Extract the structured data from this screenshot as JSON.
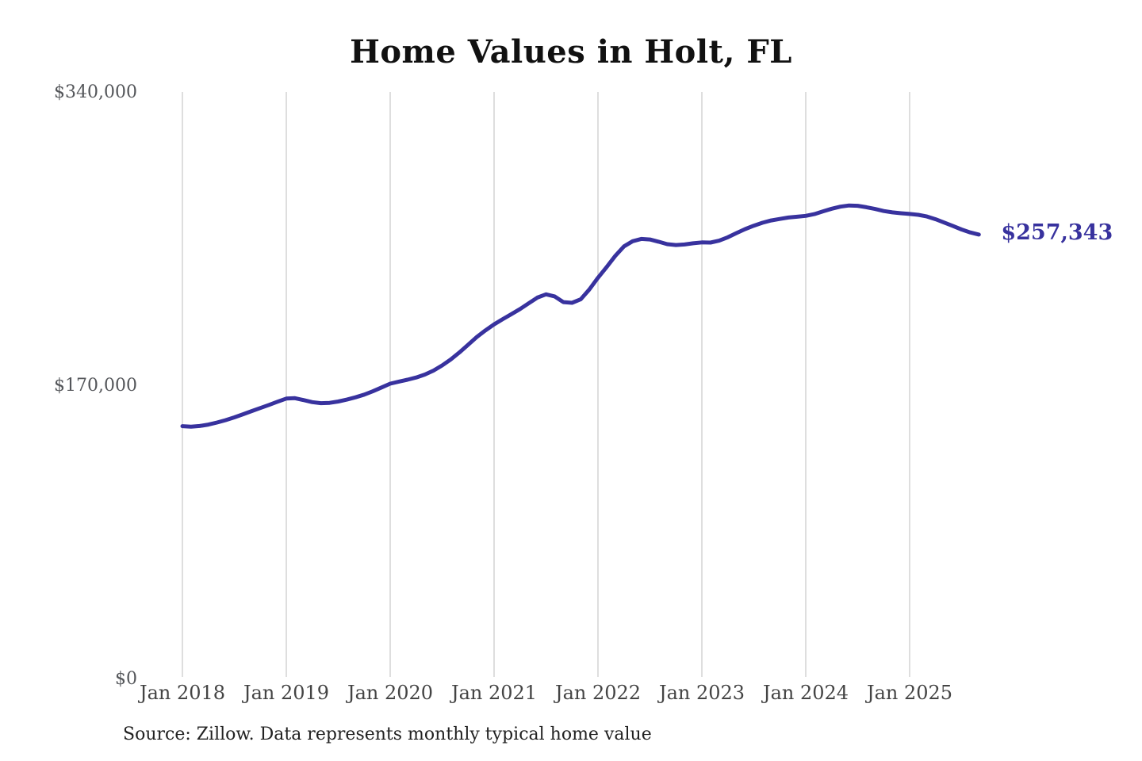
{
  "title": "Home Values in Holt, FL",
  "source_note": "Source: Zillow. Data represents monthly typical home value",
  "end_label": "$257,343",
  "style": {
    "line_color": "#38329e",
    "grid_color": "#cccccc",
    "y_tick_color": "#54565a",
    "x_tick_color": "#444444",
    "title_color": "#111111",
    "source_color": "#222222",
    "background": "#ffffff"
  },
  "chart_data": {
    "type": "line",
    "title": "Home Values in Holt, FL",
    "series_name": "Monthly typical home value",
    "x_start": "Jan 2018",
    "x_end": "Sep 2025",
    "x_tick_labels": [
      "Jan 2018",
      "Jan 2019",
      "Jan 2020",
      "Jan 2021",
      "Jan 2022",
      "Jan 2023",
      "Jan 2024",
      "Jan 2025"
    ],
    "y_ticks": [
      {
        "label": "$0",
        "value": 0
      },
      {
        "label": "$170,000",
        "value": 170000
      },
      {
        "label": "$340,000",
        "value": 340000
      }
    ],
    "ylim": [
      0,
      340000
    ],
    "grid": "vertical-only",
    "legend": "none",
    "last_value": 257343,
    "last_value_label": "$257,343",
    "values": [
      146300,
      146000,
      146400,
      147200,
      148400,
      149800,
      151400,
      153200,
      155000,
      156800,
      158600,
      160500,
      162300,
      162500,
      161400,
      160200,
      159600,
      159800,
      160600,
      161700,
      163000,
      164600,
      166500,
      168700,
      170900,
      172100,
      173200,
      174500,
      176200,
      178500,
      181500,
      185000,
      189000,
      193500,
      198000,
      201800,
      205300,
      208300,
      211200,
      214200,
      217500,
      220800,
      222700,
      221500,
      218200,
      217800,
      219800,
      225500,
      232300,
      238500,
      245000,
      250500,
      253500,
      254800,
      254500,
      253200,
      251800,
      251300,
      251600,
      252300,
      252800,
      252700,
      253800,
      255800,
      258200,
      260500,
      262500,
      264200,
      265500,
      266400,
      267200,
      267700,
      268200,
      269200,
      270800,
      272300,
      273500,
      274200,
      274000,
      273200,
      272200,
      271000,
      270200,
      269700,
      269300,
      268800,
      267800,
      266200,
      264300,
      262300,
      260300,
      258600,
      257343
    ]
  }
}
